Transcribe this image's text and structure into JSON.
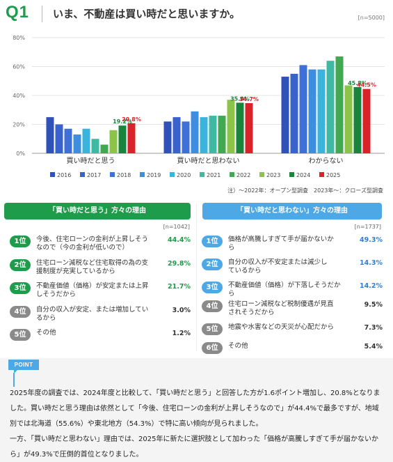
{
  "header": {
    "q_mark": "Q1",
    "question": "いま、不動産は買い時だと思いますか。",
    "n": "[n=5000]"
  },
  "chart_data": {
    "type": "bar",
    "categories": [
      "買い時だと思う",
      "買い時だと思わない",
      "わからない"
    ],
    "ylim": [
      0,
      80
    ],
    "yticks": [
      "0%",
      "20%",
      "40%",
      "60%",
      "80%"
    ],
    "grid": true,
    "legend_position": "bottom",
    "series": [
      {
        "name": "2016",
        "color": "#2f52b8",
        "values": [
          25,
          22,
          53
        ]
      },
      {
        "name": "2017",
        "color": "#3a62cc",
        "values": [
          20,
          25,
          55
        ]
      },
      {
        "name": "2018",
        "color": "#3f70d8",
        "values": [
          17,
          22,
          61
        ]
      },
      {
        "name": "2019",
        "color": "#3e8ee0",
        "values": [
          13,
          29,
          58
        ]
      },
      {
        "name": "2020",
        "color": "#3ab4dd",
        "values": [
          17,
          25,
          58
        ]
      },
      {
        "name": "2021",
        "color": "#3fb9a4",
        "values": [
          10,
          26,
          64
        ]
      },
      {
        "name": "2022",
        "color": "#43a852",
        "values": [
          6,
          26,
          67
        ]
      },
      {
        "name": "2023",
        "color": "#8cc44a",
        "values": [
          16,
          37,
          47
        ]
      },
      {
        "name": "2024",
        "color": "#18843c",
        "values": [
          19.2,
          35.0,
          45.8
        ]
      },
      {
        "name": "2025",
        "color": "#d9232b",
        "values": [
          20.8,
          34.7,
          44.5
        ]
      }
    ],
    "data_labels": [
      {
        "category": "買い時だと思う",
        "series": "2024",
        "text": "19.2%"
      },
      {
        "category": "買い時だと思う",
        "series": "2025",
        "text": "20.8%"
      },
      {
        "category": "買い時だと思わない",
        "series": "2024",
        "text": "35.0%"
      },
      {
        "category": "買い時だと思わない",
        "series": "2025",
        "text": "34.7%"
      },
      {
        "category": "わからない",
        "series": "2024",
        "text": "45.8%"
      },
      {
        "category": "わからない",
        "series": "2025",
        "text": "44.5%"
      }
    ]
  },
  "note": "注）〜2022年：オープン型調査　2023年〜：クローズ型調査",
  "reasons_yes": {
    "title": "「買い時だと思う」方々の理由",
    "n": "[n=1042]",
    "items": [
      {
        "rank": "1位",
        "text": "今後、住宅ローンの金利が上昇しそうなので（今の金利が低いので）",
        "pct": "44.4%"
      },
      {
        "rank": "2位",
        "text": "住宅ローン減税など住宅取得の為の支援制度が充実しているから",
        "pct": "29.8%"
      },
      {
        "rank": "3位",
        "text": "不動産価値（価格）が安定または上昇しそうだから",
        "pct": "21.7%"
      },
      {
        "rank": "4位",
        "text": "自分の収入が安定、または増加しているから",
        "pct": "3.0%"
      },
      {
        "rank": "5位",
        "text": "その他",
        "pct": "1.2%"
      }
    ]
  },
  "reasons_no": {
    "title": "「買い時だと思わない」方々の理由",
    "n": "[n=1737]",
    "items": [
      {
        "rank": "1位",
        "text": "価格が高騰しすぎて手が届かないから",
        "pct": "49.3%"
      },
      {
        "rank": "2位",
        "text": "自分の収入が不安定または減少しているから",
        "pct": "14.3%"
      },
      {
        "rank": "3位",
        "text": "不動産価値（価格）が下落しそうだから",
        "pct": "14.2%"
      },
      {
        "rank": "4位",
        "text": "住宅ローン減税など税制優遇が見直されそうだから",
        "pct": "9.5%"
      },
      {
        "rank": "5位",
        "text": "地震や水害などの天災が心配だから",
        "pct": "7.3%"
      },
      {
        "rank": "6位",
        "text": "その他",
        "pct": "5.4%"
      }
    ]
  },
  "point": {
    "tag": "POINT",
    "p1": "2025年度の調査では、2024年度と比較して、「買い時だと思う」と回答した方が1.6ポイント増加し、20.8%となりました。買い時だと思う理由は依然として「今後、住宅ローンの金利が上昇しそうなので」が44.4%で最多ですが、地域別では北海道（55.6%）や東北地方（54.3%）で特に高い傾向が見られました。",
    "p2": "一方、「買い時だと思わない」理由では、2025年に新たに選択肢として加わった「価格が高騰しすぎて手が届かないから」が49.3%で圧倒的首位となりました。"
  },
  "colors": {
    "green": "#1e9b4b",
    "blue": "#4ea8e6",
    "red": "#d9232b",
    "gray_badge": "#8a8a8a",
    "text_blue": "#2f7fd1"
  }
}
